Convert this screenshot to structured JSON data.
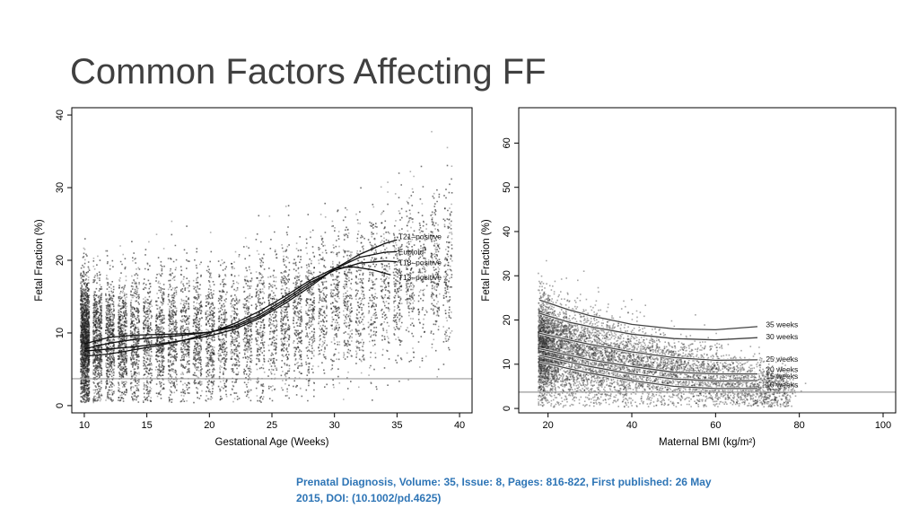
{
  "slide": {
    "title": "Common Factors Affecting FF",
    "citation": "Prenatal Diagnosis, Volume: 35, Issue: 8, Pages: 816-822, First published: 26 May 2015, DOI: (10.1002/pd.4625)"
  },
  "colors": {
    "points": "#000000",
    "fit_lines_left": "#111111",
    "fit_lines_right": "#444444",
    "reference_line": "#999999",
    "citation": "#2e75b6"
  },
  "chart_data": [
    {
      "type": "scatter",
      "title": "",
      "xlabel": "Gestational Age (Weeks)",
      "ylabel": "Fetal Fraction (%)",
      "xlim": [
        9,
        41
      ],
      "ylim": [
        -1,
        41
      ],
      "xticks": [
        10,
        15,
        20,
        25,
        30,
        35,
        40
      ],
      "yticks": [
        0,
        10,
        20,
        30,
        40
      ],
      "grid": false,
      "reference_line_y": 3.7,
      "series": [
        {
          "name": "T21–positive",
          "x": [
            10,
            12,
            14,
            16,
            18,
            20,
            22,
            24,
            26,
            28,
            30,
            32,
            34,
            35
          ],
          "y": [
            7.5,
            7.8,
            8.1,
            8.5,
            9.0,
            9.6,
            10.5,
            12.0,
            14.0,
            16.3,
            18.8,
            20.8,
            22.3,
            22.8
          ]
        },
        {
          "name": "Euploid",
          "x": [
            10,
            12,
            14,
            16,
            18,
            20,
            22,
            24,
            26,
            28,
            30,
            32,
            34,
            35
          ],
          "y": [
            8.5,
            9.4,
            9.7,
            9.8,
            9.9,
            10.1,
            10.8,
            12.2,
            14.3,
            16.6,
            18.8,
            20.4,
            21.1,
            21.2
          ]
        },
        {
          "name": "T18–positive",
          "x": [
            10,
            12,
            14,
            16,
            18,
            20,
            22,
            24,
            26,
            28,
            30,
            32,
            34,
            35
          ],
          "y": [
            7.8,
            8.6,
            9.1,
            9.4,
            9.7,
            10.1,
            11.0,
            12.5,
            14.6,
            16.9,
            18.6,
            19.6,
            19.9,
            19.8
          ]
        },
        {
          "name": "T13–positive",
          "x": [
            10,
            12,
            14,
            16,
            18,
            20,
            22,
            24,
            26,
            28,
            30,
            31.5,
            33,
            34.5
          ],
          "y": [
            6.8,
            7.1,
            7.7,
            8.3,
            9.0,
            10.0,
            11.3,
            13.0,
            15.0,
            17.2,
            18.9,
            19.1,
            18.7,
            18.0
          ]
        }
      ]
    },
    {
      "type": "scatter",
      "title": "",
      "xlabel": "Maternal BMI (kg/m²)",
      "ylabel": "Fetal Fraction (%)",
      "xlim": [
        13,
        103
      ],
      "ylim": [
        -1,
        68
      ],
      "xticks": [
        20,
        40,
        60,
        80,
        100
      ],
      "yticks": [
        0,
        10,
        20,
        30,
        40,
        50,
        60
      ],
      "grid": false,
      "reference_line_y": 3.7,
      "series": [
        {
          "name": "35 weeks",
          "x": [
            18,
            25,
            30,
            40,
            50,
            60,
            70
          ],
          "y": [
            24.5,
            22.3,
            21.0,
            19.0,
            18.0,
            17.8,
            18.5
          ]
        },
        {
          "name": "30 weeks",
          "x": [
            18,
            25,
            30,
            40,
            50,
            60,
            70
          ],
          "y": [
            21.5,
            19.5,
            18.5,
            16.8,
            15.8,
            15.5,
            16.0
          ]
        },
        {
          "name": "25 weeks",
          "x": [
            18,
            25,
            30,
            40,
            50,
            60,
            70
          ],
          "y": [
            17.0,
            15.5,
            14.5,
            12.8,
            11.5,
            10.9,
            11.0
          ]
        },
        {
          "name": "20 weeks",
          "x": [
            18,
            25,
            30,
            40,
            50,
            60,
            70
          ],
          "y": [
            13.5,
            12.0,
            11.0,
            9.5,
            8.2,
            7.8,
            7.8
          ]
        },
        {
          "name": "15 weeks",
          "x": [
            18,
            25,
            30,
            40,
            50,
            60,
            70
          ],
          "y": [
            12.0,
            10.5,
            9.5,
            7.8,
            6.7,
            6.2,
            6.3
          ]
        },
        {
          "name": "10 weeks",
          "x": [
            18,
            25,
            30,
            40,
            50,
            60,
            70
          ],
          "y": [
            10.5,
            9.0,
            8.0,
            6.3,
            5.0,
            4.5,
            4.5
          ]
        }
      ]
    }
  ]
}
